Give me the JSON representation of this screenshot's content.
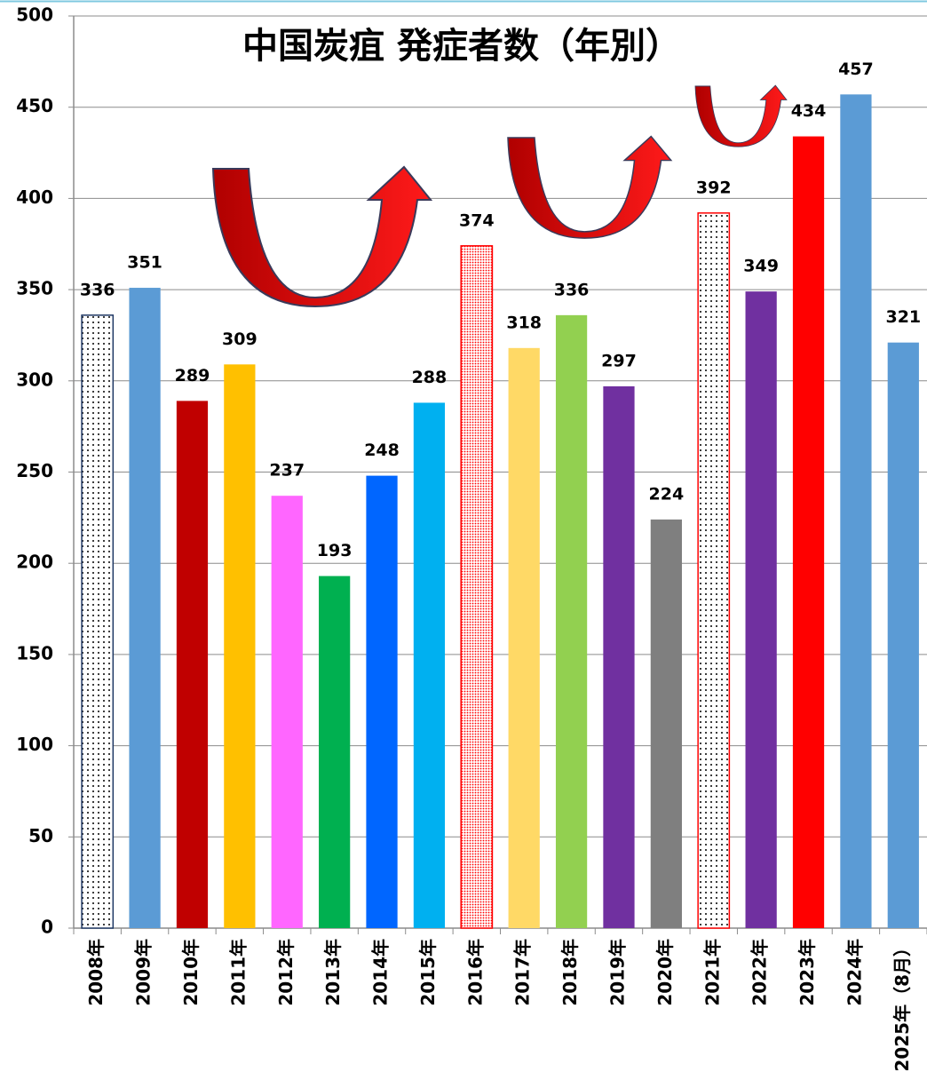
{
  "chart_data": {
    "type": "bar",
    "title": "中国炭疽 発症者数（年別）",
    "categories": [
      "2008年",
      "2009年",
      "2010年",
      "2011年",
      "2012年",
      "2013年",
      "2014年",
      "2015年",
      "2016年",
      "2017年",
      "2018年",
      "2019年",
      "2020年",
      "2021年",
      "2022年",
      "2023年",
      "2024年",
      "2025年（8月）"
    ],
    "values": [
      336,
      351,
      289,
      309,
      237,
      193,
      248,
      288,
      374,
      318,
      336,
      297,
      224,
      392,
      349,
      434,
      457,
      321
    ],
    "colors": [
      "#1f3864",
      "#5b9bd5",
      "#c00000",
      "#ffc000",
      "#ff66ff",
      "#00b050",
      "#0066ff",
      "#00b0f0",
      "#ff0000",
      "#ffd966",
      "#92d050",
      "#7030a0",
      "#7f7f7f",
      "#ff0000",
      "#7030a0",
      "#ff0000",
      "#5b9bd5",
      "#5b9bd5"
    ],
    "patterns": [
      "dots",
      null,
      null,
      null,
      null,
      null,
      null,
      null,
      "dense-dots",
      null,
      null,
      null,
      null,
      "dots",
      null,
      null,
      null,
      null
    ],
    "ylim": [
      0,
      500
    ],
    "yticks": [
      0,
      50,
      100,
      150,
      200,
      250,
      300,
      350,
      400,
      450,
      500
    ],
    "grid": true
  }
}
